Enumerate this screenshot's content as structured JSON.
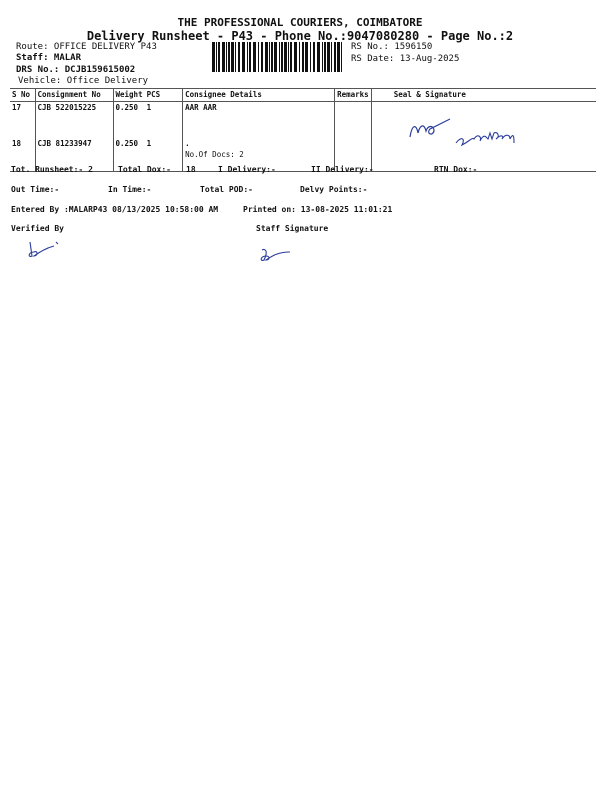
{
  "header": {
    "company": "THE PROFESSIONAL COURIERS, COIMBATORE",
    "subtitle": "Delivery Runsheet - P43 - Phone No.:9047080280 - Page No.:2",
    "route": "Route: OFFICE DELIVERY P43",
    "staff": "Staff: MALAR",
    "drs": "DRS No.: DCJB159615002",
    "vehicle": "Vehicle: Office Delivery",
    "rs_no": "RS No.: 1596150",
    "rs_date": "RS Date: 13-Aug-2025"
  },
  "table": {
    "columns": [
      "S No",
      "Consignment No",
      "Weight",
      "PCS",
      "Consignee Details",
      "Remarks",
      "Seal & Signature"
    ],
    "rows": [
      {
        "sno": "17",
        "consignment": "CJB 522015225",
        "weight": "0.250",
        "pcs": "1",
        "consignee": "AAR AAR",
        "remarks": ""
      },
      {
        "sno": "18",
        "consignment": "CJB 81233947",
        "weight": "0.250",
        "pcs": "1",
        "consignee": ".",
        "remarks": ""
      }
    ],
    "docs_count": "No.Of Docs: 2",
    "handwritten_seal": "AAR 8754116884"
  },
  "totals": {
    "runsheet": "Tot. Runsheet:- 2",
    "total_dox": "Total Dox:-",
    "total_dox_value": "18",
    "i_delivery": "I Delivery:-",
    "ii_delivery": "II Delivery:-",
    "rtn_dox": "RTN Dox:-",
    "out_time": "Out Time:-",
    "in_time": "In Time:-",
    "total_pod": "Total POD:-",
    "delvy_points": "Delvy Points:-"
  },
  "footer": {
    "entered_by": "Entered By :MALARP43 08/13/2025 10:58:00 AM",
    "printed_on": "Printed on: 13-08-2025 11:01:21",
    "verified_by": "Verified By",
    "staff_signature": "Staff Signature"
  },
  "colors": {
    "ink": "#111111",
    "pen": "#2a3d9a"
  }
}
